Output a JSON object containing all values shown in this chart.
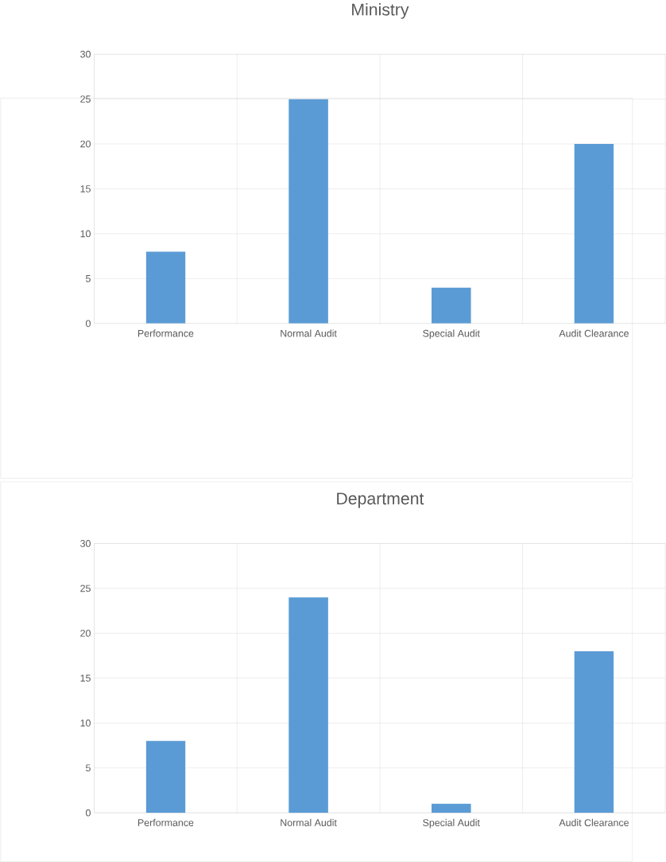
{
  "chart_data": [
    {
      "type": "bar",
      "title": "Ministry",
      "categories": [
        "Performance",
        "Normal Audit",
        "Special Audit",
        "Audit Clearance"
      ],
      "values": [
        8,
        25,
        4,
        20
      ],
      "color": "#5b9bd5",
      "ylim": [
        0,
        30
      ],
      "yticks": [
        0,
        5,
        10,
        15,
        20,
        25,
        30
      ],
      "grid": true
    },
    {
      "type": "bar",
      "title": "Department",
      "categories": [
        "Performance",
        "Normal Audit",
        "Special Audit",
        "Audit Clearance"
      ],
      "values": [
        8,
        24,
        1,
        18
      ],
      "color": "#5b9bd5",
      "ylim": [
        0,
        30
      ],
      "yticks": [
        0,
        5,
        10,
        15,
        20,
        25,
        30
      ],
      "grid": true
    }
  ]
}
